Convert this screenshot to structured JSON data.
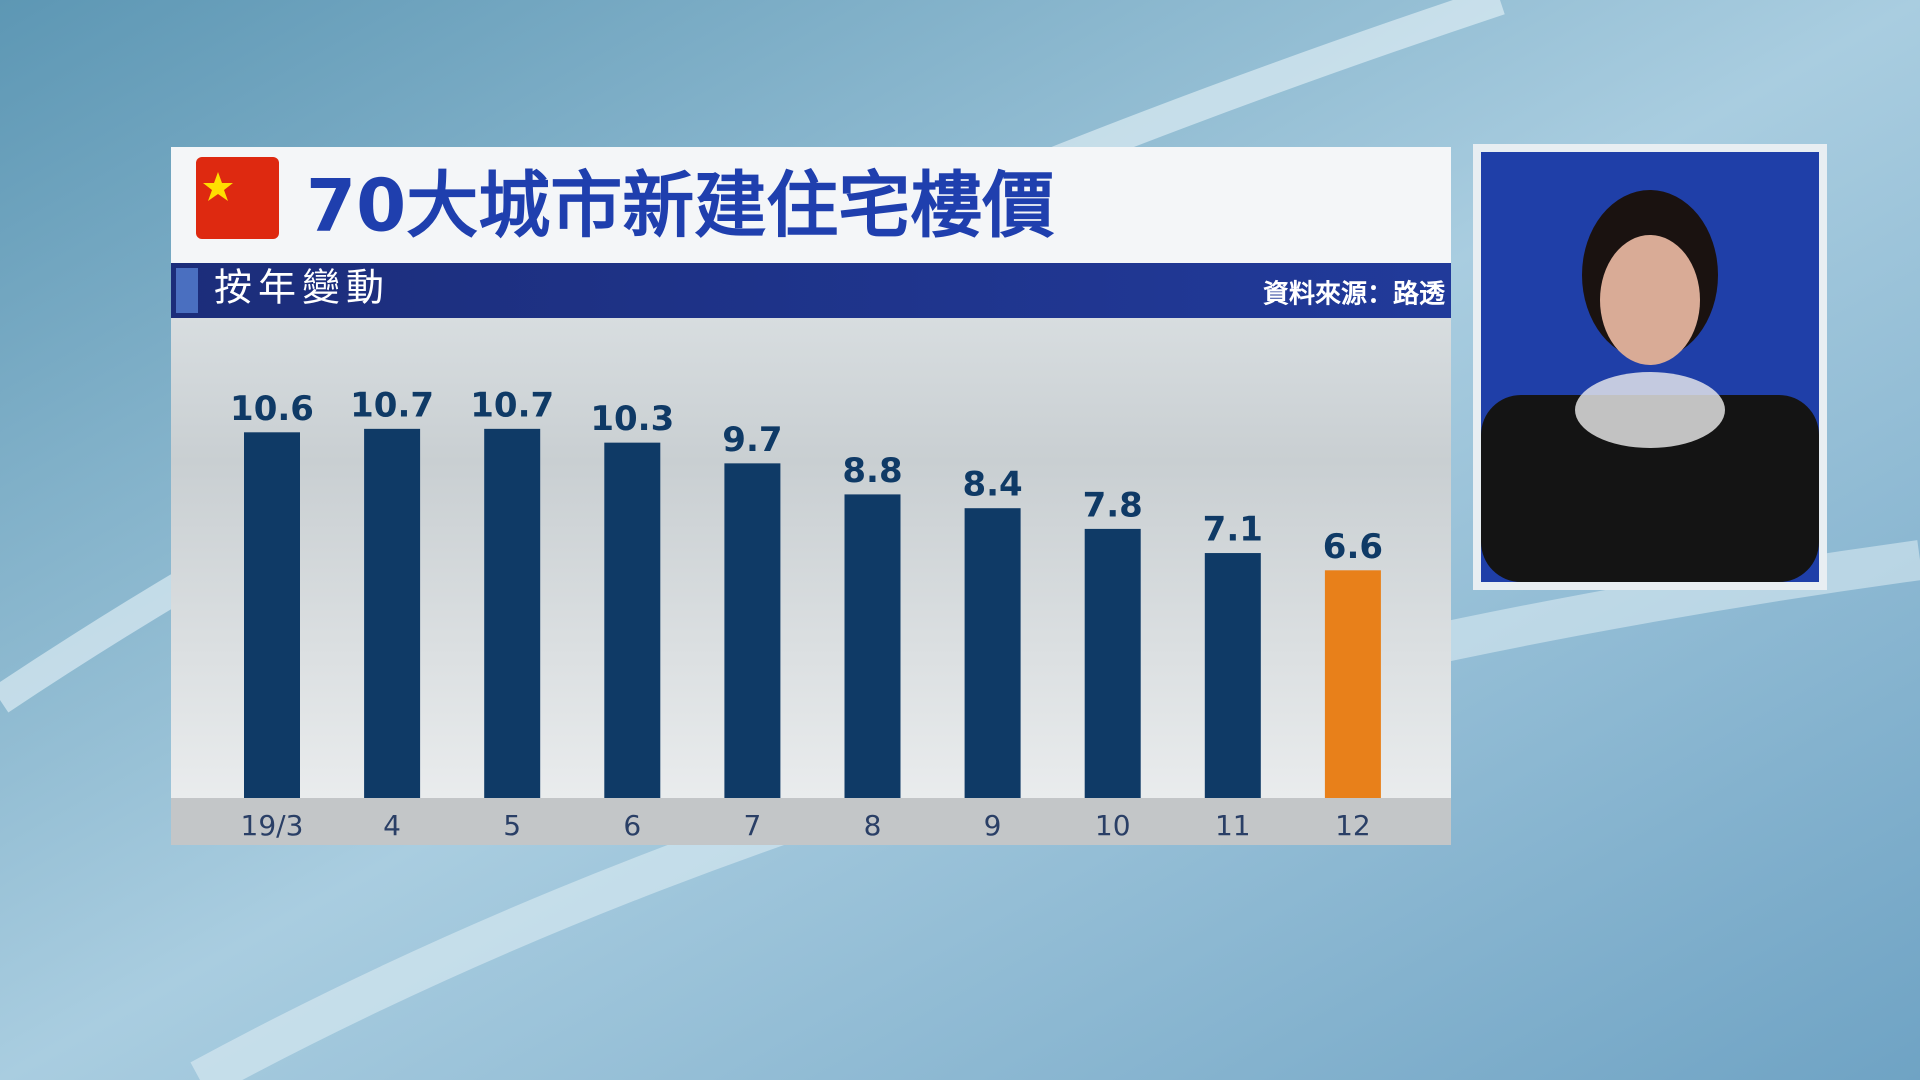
{
  "chart_data": {
    "type": "bar",
    "title": "70大城市新建住宅樓價",
    "subtitle": "按年變動",
    "source": "資料來源：路透",
    "categories": [
      "19/3",
      "4",
      "5",
      "6",
      "7",
      "8",
      "9",
      "10",
      "11",
      "12"
    ],
    "values": [
      10.6,
      10.7,
      10.7,
      10.3,
      9.7,
      8.8,
      8.4,
      7.8,
      7.1,
      6.6
    ],
    "colors": [
      "#0f3a66",
      "#0f3a66",
      "#0f3a66",
      "#0f3a66",
      "#0f3a66",
      "#0f3a66",
      "#0f3a66",
      "#0f3a66",
      "#0f3a66",
      "#e8801a"
    ]
  }
}
